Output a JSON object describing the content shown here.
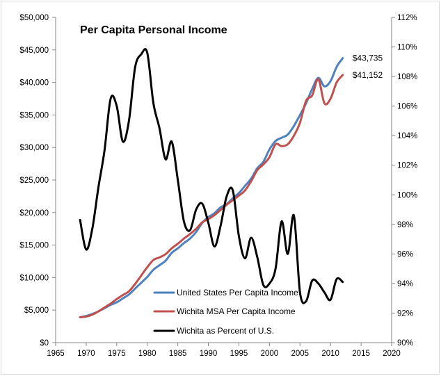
{
  "chart_data": {
    "type": "line",
    "title": "Per Capita Personal Income",
    "xlabel": "",
    "ylabel": "",
    "y2label": "",
    "grid": false,
    "legend_position": "bottom-center",
    "xlim": [
      1965,
      2020
    ],
    "x_ticks": [
      "1965",
      "1970",
      "1975",
      "1980",
      "1985",
      "1990",
      "1995",
      "2000",
      "2005",
      "2010",
      "2015",
      "2020"
    ],
    "ylim": [
      0,
      50000
    ],
    "y_ticks": [
      "$0",
      "$5,000",
      "$10,000",
      "$15,000",
      "$20,000",
      "$25,000",
      "$30,000",
      "$35,000",
      "$40,000",
      "$45,000",
      "$50,000"
    ],
    "y2lim": [
      90,
      112
    ],
    "y2_ticks": [
      "90%",
      "92%",
      "94%",
      "96%",
      "98%",
      "100%",
      "102%",
      "104%",
      "106%",
      "108%",
      "110%",
      "112%"
    ],
    "series": [
      {
        "name": "United States Per Capita Income",
        "axis": "left",
        "color": "#4F81BD",
        "x": [
          1969,
          1970,
          1971,
          1972,
          1973,
          1974,
          1975,
          1976,
          1977,
          1978,
          1979,
          1980,
          1981,
          1982,
          1983,
          1984,
          1985,
          1986,
          1987,
          1988,
          1989,
          1990,
          1991,
          1992,
          1993,
          1994,
          1995,
          1996,
          1997,
          1998,
          1999,
          2000,
          2001,
          2002,
          2003,
          2004,
          2005,
          2006,
          2007,
          2008,
          2009,
          2010,
          2011,
          2012
        ],
        "values": [
          3900,
          4100,
          4400,
          4800,
          5300,
          5800,
          6200,
          6800,
          7400,
          8300,
          9200,
          10100,
          11200,
          11900,
          12600,
          13800,
          14500,
          15300,
          16000,
          17000,
          18400,
          19300,
          19900,
          20800,
          21300,
          22200,
          23000,
          24100,
          25200,
          26800,
          27800,
          29700,
          31000,
          31500,
          32000,
          33300,
          35000,
          36800,
          39000,
          40700,
          39400,
          40200,
          42400,
          43735
        ],
        "end_label": "$43,735"
      },
      {
        "name": "Wichita MSA Per Capita Income",
        "axis": "left",
        "color": "#C0504D",
        "x": [
          1969,
          1970,
          1971,
          1972,
          1973,
          1974,
          1975,
          1976,
          1977,
          1978,
          1979,
          1980,
          1981,
          1982,
          1983,
          1984,
          1985,
          1986,
          1987,
          1988,
          1989,
          1990,
          1991,
          1992,
          1993,
          1994,
          1995,
          1996,
          1997,
          1998,
          1999,
          2000,
          2001,
          2002,
          2003,
          2004,
          2005,
          2006,
          2007,
          2008,
          2009,
          2010,
          2011,
          2012
        ],
        "values": [
          3900,
          4000,
          4300,
          4800,
          5400,
          6000,
          6700,
          7300,
          7900,
          9000,
          10300,
          11600,
          12700,
          13100,
          13600,
          14500,
          15200,
          16000,
          16700,
          17500,
          18500,
          19000,
          19600,
          20400,
          21200,
          21900,
          22600,
          23400,
          24800,
          26500,
          27400,
          28500,
          30500,
          30200,
          30500,
          31800,
          33800,
          37200,
          38000,
          40500,
          36800,
          37500,
          40000,
          41152
        ],
        "end_label": "$41,152"
      },
      {
        "name": "Wichita as Percent of U.S.",
        "axis": "right",
        "color": "#000000",
        "x": [
          1969,
          1970,
          1971,
          1972,
          1973,
          1974,
          1975,
          1976,
          1977,
          1978,
          1979,
          1980,
          1981,
          1982,
          1983,
          1984,
          1985,
          1986,
          1987,
          1988,
          1989,
          1990,
          1991,
          1992,
          1993,
          1994,
          1995,
          1996,
          1997,
          1998,
          1999,
          2000,
          2001,
          2002,
          2003,
          2004,
          2005,
          2006,
          2007,
          2008,
          2009,
          2010,
          2011,
          2012
        ],
        "values": [
          98.3,
          96.3,
          97.7,
          100.5,
          103.0,
          106.5,
          106.0,
          103.6,
          105.0,
          108.6,
          109.5,
          109.6,
          106.2,
          104.5,
          102.4,
          103.6,
          101.0,
          98.2,
          97.6,
          99.0,
          99.4,
          98.1,
          96.5,
          97.9,
          99.9,
          100.3,
          97.2,
          95.7,
          97.1,
          95.8,
          93.9,
          94.0,
          95.0,
          98.2,
          96.0,
          98.6,
          93.4,
          92.8,
          94.2,
          94.0,
          93.4,
          92.9,
          94.3,
          94.1
        ],
        "end_label": ""
      }
    ]
  }
}
